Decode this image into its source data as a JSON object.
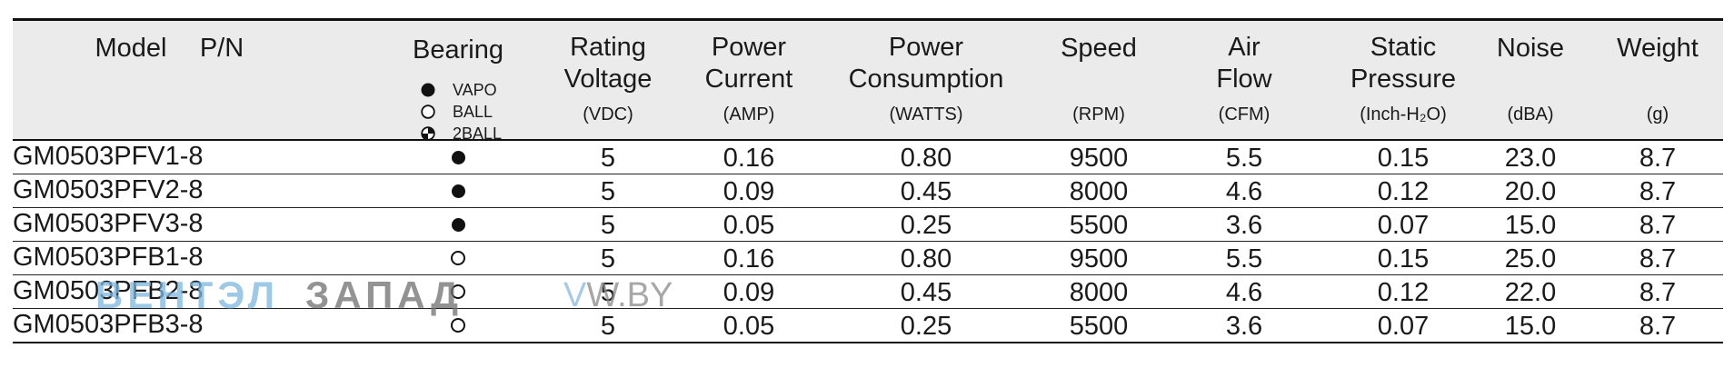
{
  "headers": [
    {
      "key": "model",
      "title": "Model",
      "unit": ""
    },
    {
      "key": "pn",
      "title": "P/N",
      "unit": ""
    },
    {
      "key": "bearing",
      "title": "Bearing",
      "unit": ""
    },
    {
      "key": "voltage",
      "title": "Rating\nVoltage",
      "unit": "(VDC)"
    },
    {
      "key": "current",
      "title": "Power\nCurrent",
      "unit": "(AMP)"
    },
    {
      "key": "consumption",
      "title": "Power\nConsumption",
      "unit": "(WATTS)"
    },
    {
      "key": "speed",
      "title": "Speed",
      "unit": "(RPM)"
    },
    {
      "key": "airflow",
      "title": "Air\nFlow",
      "unit": "(CFM)"
    },
    {
      "key": "pressure",
      "title": "Static\nPressure",
      "unit": "(Inch-H₂O)"
    },
    {
      "key": "noise",
      "title": "Noise",
      "unit": "(dBA)"
    },
    {
      "key": "weight",
      "title": "Weight",
      "unit": "(g)"
    }
  ],
  "bearing_legend": [
    {
      "symbol": "filled-circle",
      "label": "VAPO"
    },
    {
      "symbol": "open-circle",
      "label": "BALL"
    },
    {
      "symbol": "quartered-circle",
      "label": "2BALL"
    }
  ],
  "rows": [
    {
      "model": "GM0503PFV1-8",
      "bearing": "VAPO",
      "voltage": "5",
      "current": "0.16",
      "consumption": "0.80",
      "speed": "9500",
      "airflow": "5.5",
      "pressure": "0.15",
      "noise": "23.0",
      "weight": "8.7"
    },
    {
      "model": "GM0503PFV2-8",
      "bearing": "VAPO",
      "voltage": "5",
      "current": "0.09",
      "consumption": "0.45",
      "speed": "8000",
      "airflow": "4.6",
      "pressure": "0.12",
      "noise": "20.0",
      "weight": "8.7"
    },
    {
      "model": "GM0503PFV3-8",
      "bearing": "VAPO",
      "voltage": "5",
      "current": "0.05",
      "consumption": "0.25",
      "speed": "5500",
      "airflow": "3.6",
      "pressure": "0.07",
      "noise": "15.0",
      "weight": "8.7"
    },
    {
      "model": "GM0503PFB1-8",
      "bearing": "BALL",
      "voltage": "5",
      "current": "0.16",
      "consumption": "0.80",
      "speed": "9500",
      "airflow": "5.5",
      "pressure": "0.15",
      "noise": "25.0",
      "weight": "8.7"
    },
    {
      "model": "GM0503PFB2-8",
      "bearing": "BALL",
      "voltage": "5",
      "current": "0.09",
      "consumption": "0.45",
      "speed": "8000",
      "airflow": "4.6",
      "pressure": "0.12",
      "noise": "22.0",
      "weight": "8.7"
    },
    {
      "model": "GM0503PFB3-8",
      "bearing": "BALL",
      "voltage": "5",
      "current": "0.05",
      "consumption": "0.25",
      "speed": "5500",
      "airflow": "3.6",
      "pressure": "0.07",
      "noise": "15.0",
      "weight": "8.7"
    }
  ],
  "watermark": {
    "part1": "ВЕНТЭЛ",
    "part2": "ЗАПАД",
    "part3a": "V",
    "part3b": "W.BY"
  }
}
